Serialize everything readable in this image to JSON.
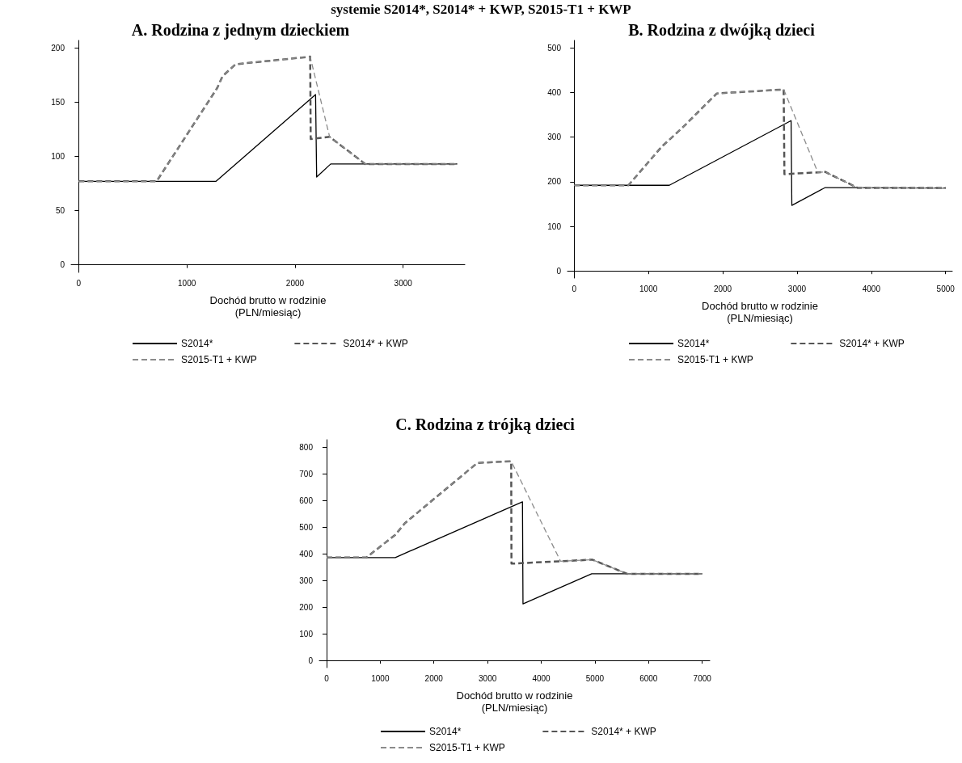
{
  "chart_data": [
    {
      "type": "line",
      "title": "A. Rodzina z jednym dzieckiem",
      "xlabel": "Dochód brutto w rodzinie\n(PLN/miesiąc)",
      "annotations": [
        "systemie S2014*, S2014* + KWP, S2015-T1 + KWP"
      ],
      "xlim": [
        -70,
        3570
      ],
      "xticks": [
        0,
        1000,
        2000,
        3000
      ],
      "ylim": [
        -7,
        207
      ],
      "yticks": [
        0,
        50,
        100,
        150,
        200
      ],
      "grid": false,
      "legend": "bottom",
      "marker": "none",
      "series": [
        {
          "name": "S2014*",
          "color": "#000000",
          "line_style": "solid",
          "x": [
            0,
            1270,
            2190,
            2200,
            2330,
            3500
          ],
          "values": [
            77,
            77,
            157,
            81,
            93,
            93
          ]
        },
        {
          "name": "S2014* + KWP",
          "color": "#555555",
          "line_style": "dashed",
          "x": [
            0,
            720,
            1280,
            1330,
            1450,
            2140,
            2145,
            2320,
            2650,
            3500
          ],
          "values": [
            77,
            77,
            163,
            174,
            185,
            192,
            116,
            118,
            93,
            93
          ]
        },
        {
          "name": "S2015-T1 + KWP",
          "color": "#8c8c8c",
          "line_style": "dashed",
          "x": [
            0,
            720,
            1280,
            1330,
            1450,
            2140,
            2320,
            2650,
            3500
          ],
          "values": [
            77,
            77,
            163,
            174,
            185,
            192,
            118,
            93,
            93
          ]
        }
      ]
    },
    {
      "type": "line",
      "title": "B. Rodzina z dwójką dzieci",
      "xlabel": "Dochód brutto w rodzinie\n(PLN/miesiąc)",
      "xlim": [
        -90,
        5090
      ],
      "xticks": [
        0,
        1000,
        2000,
        3000,
        4000,
        5000
      ],
      "ylim": [
        -16,
        517
      ],
      "yticks": [
        0,
        100,
        200,
        300,
        400,
        500
      ],
      "grid": false,
      "legend": "bottom",
      "marker": "none",
      "series": [
        {
          "name": "S2014*",
          "color": "#000000",
          "line_style": "solid",
          "x": [
            0,
            1280,
            2920,
            2930,
            3380,
            5000
          ],
          "values": [
            192,
            192,
            337,
            147,
            187,
            186
          ]
        },
        {
          "name": "S2014* + KWP",
          "color": "#555555",
          "line_style": "dashed",
          "x": [
            0,
            730,
            1180,
            1450,
            1920,
            2820,
            2830,
            3380,
            3820,
            5000
          ],
          "values": [
            192,
            192,
            279,
            320,
            398,
            407,
            217,
            222,
            186,
            186
          ]
        },
        {
          "name": "S2015-T1 + KWP",
          "color": "#8c8c8c",
          "line_style": "dashed",
          "x": [
            0,
            730,
            1180,
            1450,
            1920,
            2820,
            3280,
            3380,
            3820,
            5000
          ],
          "values": [
            192,
            192,
            279,
            320,
            398,
            407,
            221,
            222,
            186,
            186
          ]
        }
      ]
    },
    {
      "type": "line",
      "title": "C. Rodzina z trójką dzieci",
      "xlabel": "Dochód brutto w rodzinie\n(PLN/miesiąc)",
      "xlim": [
        -135,
        7140
      ],
      "xticks": [
        0,
        1000,
        2000,
        3000,
        4000,
        5000,
        6000,
        7000
      ],
      "ylim": [
        -27,
        828
      ],
      "yticks": [
        0,
        100,
        200,
        300,
        400,
        500,
        600,
        700,
        800
      ],
      "grid": false,
      "legend": "bottom",
      "marker": "none",
      "series": [
        {
          "name": "S2014*",
          "color": "#000000",
          "line_style": "solid",
          "x": [
            0,
            1280,
            3650,
            3660,
            4940,
            7000
          ],
          "values": [
            386,
            386,
            595,
            212,
            325,
            325
          ]
        },
        {
          "name": "S2014* + KWP",
          "color": "#555555",
          "line_style": "dashed",
          "x": [
            0,
            740,
            1280,
            1460,
            2810,
            3440,
            3445,
            4950,
            5600,
            7000
          ],
          "values": [
            386,
            386,
            471,
            515,
            741,
            747,
            363,
            378,
            325,
            325
          ]
        },
        {
          "name": "S2015-T1 + KWP",
          "color": "#8c8c8c",
          "line_style": "dashed",
          "x": [
            0,
            740,
            1280,
            1460,
            2810,
            3440,
            4360,
            4950,
            5600,
            7000
          ],
          "values": [
            386,
            386,
            471,
            515,
            741,
            747,
            372,
            378,
            325,
            325
          ]
        }
      ]
    }
  ]
}
